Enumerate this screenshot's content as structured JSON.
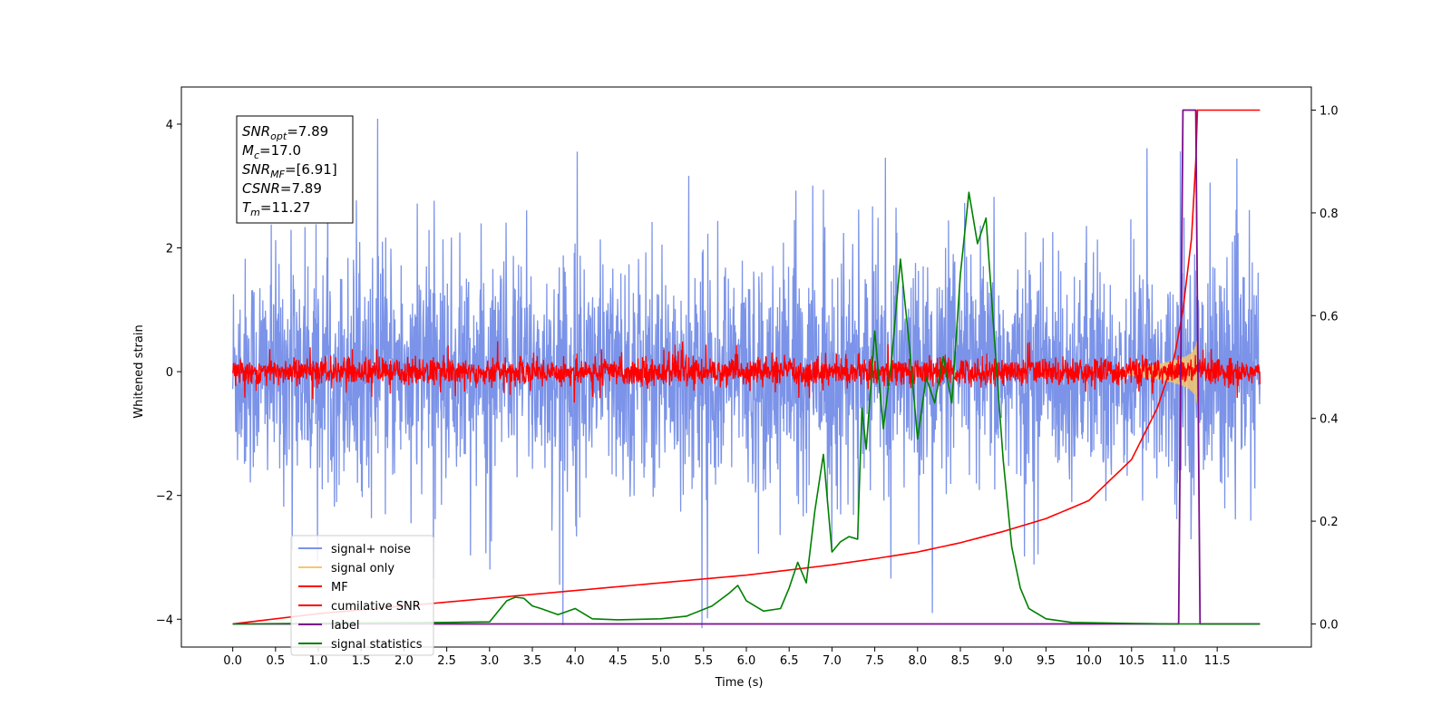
{
  "chart_data": {
    "type": "line",
    "xlabel": "Time (s)",
    "ylabel": "Whitened strain",
    "xlim": [
      -0.6,
      12.6
    ],
    "ylim": [
      -4.45,
      4.6
    ],
    "y2lim": [
      -0.045,
      1.045
    ],
    "xticks": [
      "0.0",
      "0.5",
      "1.0",
      "1.5",
      "2.0",
      "2.5",
      "3.0",
      "3.5",
      "4.0",
      "4.5",
      "5.0",
      "5.5",
      "6.0",
      "6.5",
      "7.0",
      "7.5",
      "8.0",
      "8.5",
      "9.0",
      "9.5",
      "10.0",
      "10.5",
      "11.0",
      "11.5"
    ],
    "yticks": [
      "−4",
      "−2",
      "0",
      "2",
      "4"
    ],
    "y2ticks": [
      "0.0",
      "0.2",
      "0.4",
      "0.6",
      "0.8",
      "1.0"
    ],
    "grid": false,
    "legend_placement": "lower-left",
    "annotation": {
      "lines": [
        {
          "var": "SNR",
          "sub": "opt",
          "value": "=7.89"
        },
        {
          "var": "M",
          "sub": "c",
          "value": "=17.0"
        },
        {
          "var": "SNR",
          "sub": "MF",
          "value": "=[6.91]"
        },
        {
          "var": "CSNR",
          "sub": "",
          "value": "=7.89"
        },
        {
          "var": "T",
          "sub": "m",
          "value": "=11.27"
        }
      ]
    },
    "series": [
      {
        "name": "signal+ noise",
        "axis": "left",
        "color": "#7b93e8",
        "kind": "noise",
        "x_range": [
          0.0,
          12.0
        ],
        "envelope_typical": 1.3,
        "envelope_peak": 4.15
      },
      {
        "name": "signal only",
        "axis": "left",
        "color": "#f5c76e",
        "kind": "chirp",
        "x_range": [
          10.2,
          11.27
        ],
        "peak_amplitude": 1.0
      },
      {
        "name": "MF",
        "axis": "left",
        "color": "#ff0000",
        "kind": "noise",
        "x_range": [
          0.0,
          12.0
        ],
        "envelope_typical": 0.2,
        "envelope_peak": 0.5
      },
      {
        "name": "cumilative SNR",
        "axis": "right",
        "color": "#ff0000",
        "x": [
          0.0,
          1.0,
          2.0,
          3.0,
          4.0,
          5.0,
          6.0,
          7.0,
          7.5,
          8.0,
          8.5,
          9.0,
          9.5,
          10.0,
          10.5,
          10.8,
          11.0,
          11.1,
          11.2,
          11.25,
          11.27,
          11.5,
          12.0
        ],
        "y": [
          0.0,
          0.02,
          0.035,
          0.05,
          0.065,
          0.08,
          0.095,
          0.115,
          0.127,
          0.14,
          0.158,
          0.18,
          0.205,
          0.24,
          0.32,
          0.42,
          0.52,
          0.61,
          0.75,
          0.9,
          1.0,
          1.0,
          1.0
        ]
      },
      {
        "name": "label",
        "axis": "right",
        "color": "#7b0f8f",
        "x": [
          0.0,
          11.05,
          11.1,
          11.25,
          11.3,
          12.0
        ],
        "y": [
          0.0,
          0.0,
          1.0,
          1.0,
          0.0,
          0.0
        ]
      },
      {
        "name": "signal statistics",
        "axis": "right",
        "color": "#008000",
        "x": [
          0.0,
          2.5,
          3.0,
          3.2,
          3.3,
          3.4,
          3.5,
          3.6,
          3.8,
          4.0,
          4.2,
          4.5,
          5.0,
          5.3,
          5.6,
          5.8,
          5.9,
          6.0,
          6.2,
          6.4,
          6.5,
          6.6,
          6.7,
          6.8,
          6.9,
          7.0,
          7.1,
          7.2,
          7.3,
          7.35,
          7.4,
          7.5,
          7.6,
          7.7,
          7.8,
          7.9,
          8.0,
          8.1,
          8.2,
          8.3,
          8.4,
          8.5,
          8.6,
          8.7,
          8.8,
          8.9,
          9.0,
          9.1,
          9.2,
          9.3,
          9.5,
          9.8,
          10.5,
          11.0,
          12.0
        ],
        "y": [
          0.0,
          0.003,
          0.004,
          0.045,
          0.052,
          0.05,
          0.035,
          0.03,
          0.018,
          0.03,
          0.01,
          0.008,
          0.01,
          0.015,
          0.035,
          0.06,
          0.075,
          0.045,
          0.025,
          0.03,
          0.07,
          0.12,
          0.08,
          0.22,
          0.33,
          0.14,
          0.16,
          0.17,
          0.165,
          0.42,
          0.34,
          0.57,
          0.38,
          0.52,
          0.71,
          0.55,
          0.36,
          0.48,
          0.43,
          0.52,
          0.43,
          0.68,
          0.84,
          0.74,
          0.79,
          0.55,
          0.32,
          0.15,
          0.07,
          0.03,
          0.01,
          0.003,
          0.001,
          0.0,
          0.0
        ]
      }
    ]
  }
}
